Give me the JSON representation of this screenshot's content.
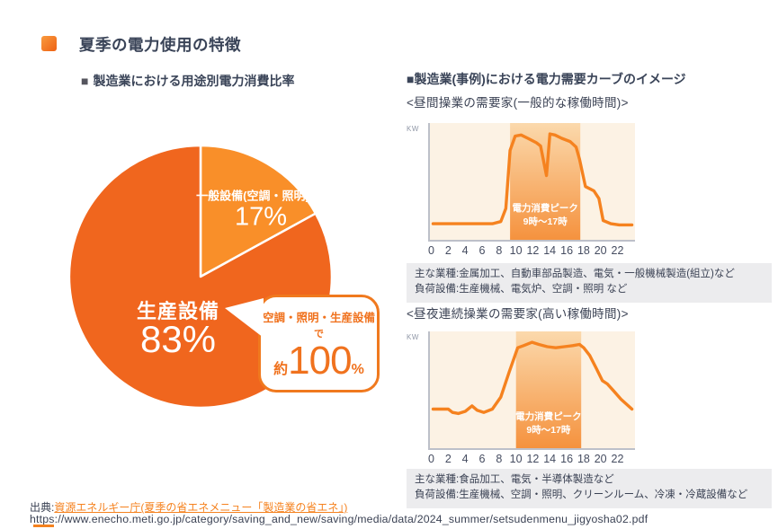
{
  "page": {
    "title": "夏季の電力使用の特徴",
    "accent_orange": "#F5821F",
    "navy_text": "#3A4458"
  },
  "left_panel": {
    "heading_marker": "■",
    "heading": "製造業における用途別電力消費比率"
  },
  "right_panel": {
    "heading": "■製造業(事例)における電力需要カーブのイメージ"
  },
  "source": {
    "prefix": "出典:",
    "link_text": "資源エネルギー庁(夏季の省エネメニュー「製造業の省エネ」)",
    "url": "https://www.enecho.meti.go.jp/category/saving_and_new/saving/media/data/2024_summer/setsudenmenu_jigyosha02.pdf"
  },
  "chart_data": [
    {
      "type": "pie",
      "title": "製造業における用途別電力消費比率",
      "slices": [
        {
          "label": "一般設備(空調・照明)",
          "value": 17,
          "pct_text": "17%",
          "color": "#F98F29"
        },
        {
          "label": "生産設備",
          "value": 83,
          "pct_text": "83%",
          "color": "#F0661E"
        }
      ],
      "callout": {
        "line1": "空調・照明・生産設備",
        "line2": "で",
        "approx": "約",
        "number": "100",
        "percent": "%",
        "border_color": "#F0791E"
      }
    },
    {
      "type": "line",
      "title": "<昼間操業の需要家(一般的な稼働時間)>",
      "ylabel": "KW",
      "x_ticks": [
        "0",
        "2",
        "4",
        "6",
        "8",
        "10",
        "12",
        "14",
        "16",
        "18",
        "20",
        "22"
      ],
      "x_range": [
        0,
        24
      ],
      "y_range": [
        0,
        100
      ],
      "grid": false,
      "line_color": "#F5821F",
      "plot_bg": "#FCF2E4",
      "points": [
        [
          0,
          13
        ],
        [
          1,
          13
        ],
        [
          2,
          13
        ],
        [
          3,
          13
        ],
        [
          4,
          13
        ],
        [
          5,
          13
        ],
        [
          6,
          13
        ],
        [
          7,
          13
        ],
        [
          8,
          15
        ],
        [
          8.6,
          27
        ],
        [
          9.1,
          80
        ],
        [
          9.7,
          93
        ],
        [
          10.4,
          94
        ],
        [
          11.2,
          91
        ],
        [
          12.2,
          87
        ],
        [
          12.7,
          84
        ],
        [
          13.4,
          57
        ],
        [
          13.8,
          95
        ],
        [
          14.4,
          94
        ],
        [
          15.2,
          91
        ],
        [
          16.2,
          88
        ],
        [
          16.9,
          83
        ],
        [
          17.3,
          72
        ],
        [
          18,
          47
        ],
        [
          19,
          43
        ],
        [
          19.6,
          36
        ],
        [
          20.1,
          16
        ],
        [
          21,
          13
        ],
        [
          22,
          12
        ],
        [
          23.5,
          12
        ]
      ],
      "peak_band": {
        "from": 9.1,
        "to": 17.4,
        "label_line1": "電力消費ピーク",
        "label_line2": "9時〜17時",
        "color_top": "#FBD9AC",
        "color_bottom": "#F5923E"
      },
      "notes": [
        "主な業種:金属加工、自動車部品製造、電気・一般機械製造(組立)など",
        "負荷設備:生産機械、電気炉、空調・照明 など"
      ]
    },
    {
      "type": "line",
      "title": "<昼夜連続操業の需要家(高い稼働時間)>",
      "ylabel": "KW",
      "x_ticks": [
        "0",
        "2",
        "4",
        "6",
        "8",
        "10",
        "12",
        "14",
        "16",
        "18",
        "20",
        "22"
      ],
      "x_range": [
        0,
        24
      ],
      "y_range": [
        0,
        100
      ],
      "grid": false,
      "line_color": "#F5821F",
      "plot_bg": "#FCF2E4",
      "points": [
        [
          0,
          34
        ],
        [
          1,
          34
        ],
        [
          1.8,
          34
        ],
        [
          2.3,
          31
        ],
        [
          3,
          30
        ],
        [
          3.8,
          32
        ],
        [
          4.6,
          37
        ],
        [
          5.2,
          33
        ],
        [
          6,
          31
        ],
        [
          7,
          34
        ],
        [
          8,
          45
        ],
        [
          9,
          68
        ],
        [
          10,
          90
        ],
        [
          10.7,
          92
        ],
        [
          11.7,
          95
        ],
        [
          12.5,
          93
        ],
        [
          13.5,
          91
        ],
        [
          14.5,
          90
        ],
        [
          15.5,
          91
        ],
        [
          16.5,
          92
        ],
        [
          17.3,
          93
        ],
        [
          17.8,
          90
        ],
        [
          18.5,
          83
        ],
        [
          19.3,
          71
        ],
        [
          20,
          60
        ],
        [
          20.6,
          57
        ],
        [
          21.3,
          51
        ],
        [
          22.2,
          43
        ],
        [
          23.5,
          34
        ]
      ],
      "peak_band": {
        "from": 9.8,
        "to": 17.5,
        "label_line1": "電力消費ピーク",
        "label_line2": "9時〜17時",
        "color_top": "#FBD9AC",
        "color_bottom": "#F5923E"
      },
      "notes": [
        "主な業種:食品加工、電気・半導体製造など",
        "負荷設備:生産機械、空調・照明、クリーンルーム、冷凍・冷蔵設備など"
      ]
    }
  ]
}
